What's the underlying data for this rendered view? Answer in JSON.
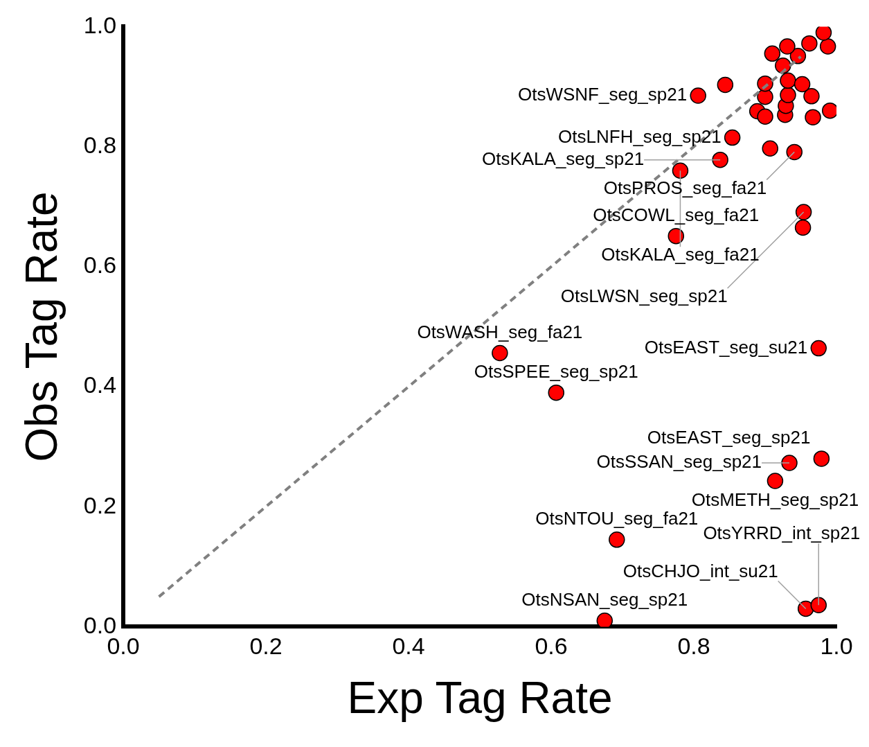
{
  "chart_data": {
    "type": "scatter",
    "xlabel": "Exp Tag Rate",
    "ylabel": "Obs Tag Rate",
    "xlim": [
      0,
      1
    ],
    "ylim": [
      0,
      1
    ],
    "xticks": [
      {
        "value": 0,
        "label": "0.0"
      },
      0.2,
      0.4,
      0.6,
      0.8,
      {
        "value": 1,
        "label": "1.0"
      }
    ],
    "yticks": [
      {
        "value": 0,
        "label": "0.0"
      },
      0.2,
      0.4,
      0.6,
      0.8,
      {
        "value": 1,
        "label": "1.0"
      }
    ],
    "grid": false,
    "legend": false,
    "series": [
      {
        "type": "line",
        "color": "#808080",
        "line_style": "dashed",
        "marker": "none",
        "x": [
          0.05,
          0.95
        ],
        "values": [
          0.05,
          0.95
        ]
      },
      {
        "type": "scatter",
        "color": "#ff0000",
        "marker": "circle",
        "x": [
          0.528,
          0.607,
          0.975,
          0.979,
          0.934,
          0.914,
          0.692,
          0.675,
          0.957,
          0.975,
          0.775,
          0.806,
          0.941,
          0.854,
          0.837,
          0.781,
          0.954,
          0.953,
          0.844,
          0.889,
          0.9,
          0.928,
          0.929,
          0.965,
          0.967,
          0.991,
          0.9,
          0.932,
          0.9,
          0.932,
          0.952,
          0.925,
          0.946,
          0.988,
          0.982,
          0.962,
          0.931,
          0.91,
          0.907
        ],
        "values": [
          0.456,
          0.39,
          0.464,
          0.28,
          0.273,
          0.243,
          0.145,
          0.01,
          0.03,
          0.036,
          0.651,
          0.885,
          0.791,
          0.815,
          0.778,
          0.76,
          0.691,
          0.665,
          0.903,
          0.859,
          0.85,
          0.853,
          0.868,
          0.884,
          0.849,
          0.86,
          0.883,
          0.886,
          0.905,
          0.91,
          0.904,
          0.935,
          0.951,
          0.967,
          0.99,
          0.972,
          0.967,
          0.955,
          0.797
        ]
      }
    ],
    "annotations": [
      {
        "text": "OtsWASH_seg_fa21",
        "x": 0.528,
        "y": 0.456
      },
      {
        "text": "OtsSPEE_seg_sp21",
        "x": 0.607,
        "y": 0.39
      },
      {
        "text": "OtsEAST_seg_su21",
        "x": 0.975,
        "y": 0.464
      },
      {
        "text": "OtsEAST_seg_sp21",
        "x": 0.979,
        "y": 0.28
      },
      {
        "text": "OtsSSAN_seg_sp21",
        "x": 0.934,
        "y": 0.273
      },
      {
        "text": "OtsMETH_seg_sp21",
        "x": 0.914,
        "y": 0.243
      },
      {
        "text": "OtsNTOU_seg_fa21",
        "x": 0.692,
        "y": 0.145
      },
      {
        "text": "OtsNSAN_seg_sp21",
        "x": 0.675,
        "y": 0.01
      },
      {
        "text": "OtsCHJO_int_su21",
        "x": 0.957,
        "y": 0.03
      },
      {
        "text": "OtsYRRD_int_sp21",
        "x": 0.975,
        "y": 0.036
      },
      {
        "text": "OtsCOWL_seg_fa21",
        "x": 0.775,
        "y": 0.651
      },
      {
        "text": "OtsWSNF_seg_sp21",
        "x": 0.806,
        "y": 0.885
      },
      {
        "text": "OtsPROS_seg_fa21",
        "x": 0.941,
        "y": 0.791
      },
      {
        "text": "OtsLNFH_seg_sp21",
        "x": 0.854,
        "y": 0.815
      },
      {
        "text": "OtsKALA_seg_sp21",
        "x": 0.837,
        "y": 0.778
      },
      {
        "text": "OtsKALA_seg_fa21",
        "x": 0.781,
        "y": 0.76
      },
      {
        "text": "OtsLWSN_seg_sp21",
        "x": 0.954,
        "y": 0.691
      }
    ]
  }
}
